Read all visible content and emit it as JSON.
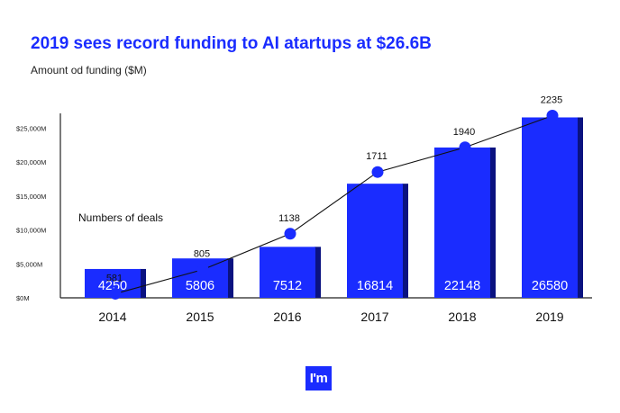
{
  "title": "2019 sees record funding to AI atartups at $26.6B",
  "subtitle": "Amount od funding ($M)",
  "logo_text": "I'm",
  "colors": {
    "bar_front": "#1a2cff",
    "bar_side": "#0a1280",
    "line": "#111111",
    "axis": "#222222",
    "title": "#1a2cff"
  },
  "chart_data": {
    "type": "bar",
    "categories": [
      "2014",
      "2015",
      "2016",
      "2017",
      "2018",
      "2019"
    ],
    "series": [
      {
        "name": "",
        "type": "bar",
        "values": [
          4250,
          5806,
          7512,
          16814,
          22148,
          26580
        ]
      },
      {
        "name": "Numbers of deals",
        "type": "line",
        "values": [
          581,
          805,
          1138,
          1711,
          1940,
          2235
        ]
      }
    ],
    "y_ticks": [
      {
        "value": 0,
        "label": "$0M"
      },
      {
        "value": 5000,
        "label": "$5,000M"
      },
      {
        "value": 10000,
        "label": "$10,000M"
      },
      {
        "value": 15000,
        "label": "$15,000M"
      },
      {
        "value": 20000,
        "label": "$20,000M"
      },
      {
        "value": 25000,
        "label": "$25,000M"
      }
    ],
    "ylim": [
      0,
      28500
    ],
    "deals_annotation": "Numbers of deals",
    "grid": false,
    "legend": "none"
  }
}
